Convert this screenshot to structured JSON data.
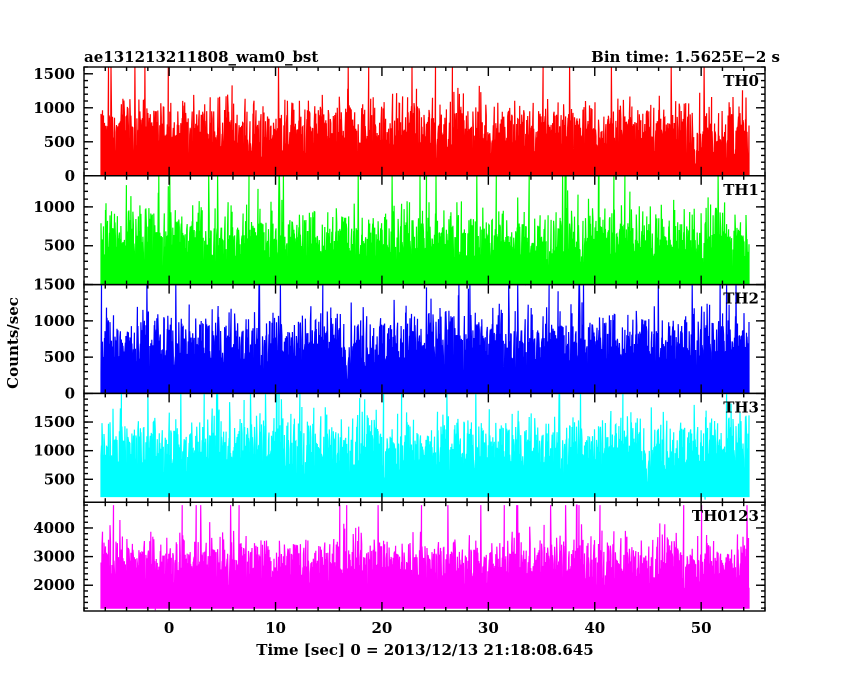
{
  "header": {
    "left_title": "ae131213211808_wam0_bst",
    "right_title": "Bin time: 1.5625E−2 s"
  },
  "chart_data": {
    "type": "line",
    "xlabel": "Time [sec] 0 = 2013/12/13 21:18:08.645",
    "ylabel": "Counts/sec",
    "xlim": [
      -8,
      56
    ],
    "x_ticks": [
      0,
      10,
      20,
      30,
      40,
      50
    ],
    "bin_time_s": 0.015625,
    "series": [
      {
        "name": "TH0",
        "color": "#ff0000",
        "ylim": [
          0,
          1600
        ],
        "y_ticks": [
          0,
          500,
          1000,
          1500
        ],
        "base": 0,
        "mean": 650,
        "spread": 260,
        "peak": 1600
      },
      {
        "name": "TH1",
        "color": "#00ff00",
        "ylim": [
          0,
          1400
        ],
        "y_ticks": [
          0,
          500,
          1000
        ],
        "base": 0,
        "mean": 560,
        "spread": 240,
        "peak": 1400
      },
      {
        "name": "TH2",
        "color": "#0000ff",
        "ylim": [
          0,
          1500
        ],
        "y_ticks": [
          0,
          500,
          1000,
          1500
        ],
        "base": 0,
        "mean": 680,
        "spread": 260,
        "peak": 1500
      },
      {
        "name": "TH3",
        "color": "#00ffff",
        "ylim": [
          100,
          2000
        ],
        "y_ticks": [
          500,
          1000,
          1500
        ],
        "base": 200,
        "mean": 1050,
        "spread": 320,
        "peak": 2000
      },
      {
        "name": "TH0123",
        "color": "#ff00ff",
        "ylim": [
          1100,
          4900
        ],
        "y_ticks": [
          2000,
          3000,
          4000
        ],
        "base": 1200,
        "mean": 2750,
        "spread": 520,
        "peak": 4800
      }
    ]
  }
}
